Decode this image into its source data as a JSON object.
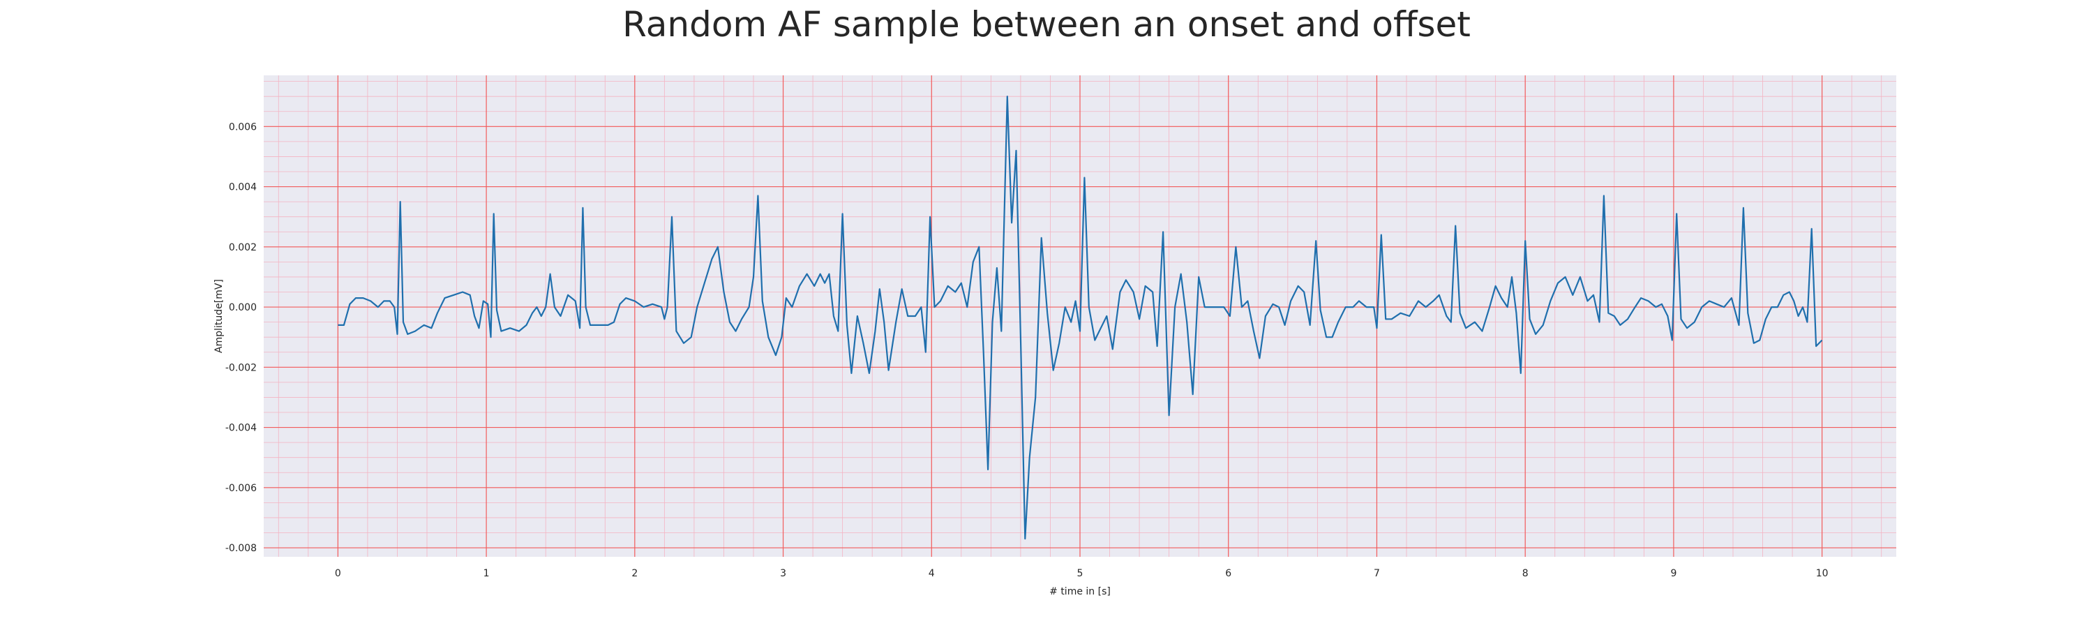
{
  "chart_data": {
    "type": "line",
    "title": "Random AF sample between an onset and offset",
    "xlabel": "# time in [s]",
    "ylabel": "Amplitude[mV]",
    "xlim": [
      -0.5,
      10.5
    ],
    "ylim": [
      -0.0083,
      0.0077
    ],
    "x_ticks": [
      0,
      1,
      2,
      3,
      4,
      5,
      6,
      7,
      8,
      9,
      10
    ],
    "x_tick_labels": [
      "0",
      "1",
      "2",
      "3",
      "4",
      "5",
      "6",
      "7",
      "8",
      "9",
      "10"
    ],
    "y_ticks": [
      -0.008,
      -0.006,
      -0.004,
      -0.002,
      0.0,
      0.002,
      0.004,
      0.006
    ],
    "y_tick_labels": [
      "-0.008",
      "-0.006",
      "-0.004",
      "-0.002",
      "0.000",
      "0.002",
      "0.004",
      "0.006"
    ],
    "grid": true,
    "grid_color": "#f25c5c",
    "minor_grid_color": "#f4b3c2",
    "background_color": "#eaeaf2",
    "line_color": "#1f6fad",
    "series": [
      {
        "points": [
          [
            0.0,
            -0.0006
          ],
          [
            0.04,
            -0.0006
          ],
          [
            0.08,
            0.0001
          ],
          [
            0.12,
            0.0003
          ],
          [
            0.17,
            0.0003
          ],
          [
            0.22,
            0.0002
          ],
          [
            0.27,
            0.0
          ],
          [
            0.31,
            0.0002
          ],
          [
            0.35,
            0.0002
          ],
          [
            0.38,
            0.0
          ],
          [
            0.4,
            -0.0009
          ],
          [
            0.42,
            0.0035
          ],
          [
            0.44,
            -0.0005
          ],
          [
            0.47,
            -0.0009
          ],
          [
            0.52,
            -0.0008
          ],
          [
            0.58,
            -0.0006
          ],
          [
            0.63,
            -0.0007
          ],
          [
            0.67,
            -0.0002
          ],
          [
            0.72,
            0.0003
          ],
          [
            0.78,
            0.0004
          ],
          [
            0.84,
            0.0005
          ],
          [
            0.89,
            0.0004
          ],
          [
            0.92,
            -0.0003
          ],
          [
            0.95,
            -0.0007
          ],
          [
            0.98,
            0.0002
          ],
          [
            1.01,
            0.0001
          ],
          [
            1.03,
            -0.001
          ],
          [
            1.05,
            0.0031
          ],
          [
            1.07,
            -0.0001
          ],
          [
            1.1,
            -0.0008
          ],
          [
            1.16,
            -0.0007
          ],
          [
            1.22,
            -0.0008
          ],
          [
            1.27,
            -0.0006
          ],
          [
            1.31,
            -0.0002
          ],
          [
            1.34,
            0.0
          ],
          [
            1.37,
            -0.0003
          ],
          [
            1.4,
            0.0
          ],
          [
            1.43,
            0.0011
          ],
          [
            1.46,
            0.0
          ],
          [
            1.5,
            -0.0003
          ],
          [
            1.55,
            0.0004
          ],
          [
            1.6,
            0.0002
          ],
          [
            1.63,
            -0.0007
          ],
          [
            1.65,
            0.0033
          ],
          [
            1.67,
            0.0
          ],
          [
            1.7,
            -0.0006
          ],
          [
            1.76,
            -0.0006
          ],
          [
            1.82,
            -0.0006
          ],
          [
            1.86,
            -0.0005
          ],
          [
            1.9,
            0.0001
          ],
          [
            1.94,
            0.0003
          ],
          [
            2.0,
            0.0002
          ],
          [
            2.06,
            0.0
          ],
          [
            2.12,
            0.0001
          ],
          [
            2.18,
            0.0
          ],
          [
            2.2,
            -0.0004
          ],
          [
            2.22,
            0.0
          ],
          [
            2.25,
            0.003
          ],
          [
            2.28,
            -0.0008
          ],
          [
            2.33,
            -0.0012
          ],
          [
            2.38,
            -0.001
          ],
          [
            2.42,
            0.0
          ],
          [
            2.47,
            0.0008
          ],
          [
            2.52,
            0.0016
          ],
          [
            2.56,
            0.002
          ],
          [
            2.6,
            0.0005
          ],
          [
            2.64,
            -0.0005
          ],
          [
            2.68,
            -0.0008
          ],
          [
            2.72,
            -0.0004
          ],
          [
            2.77,
            0.0
          ],
          [
            2.8,
            0.001
          ],
          [
            2.83,
            0.0037
          ],
          [
            2.86,
            0.0002
          ],
          [
            2.9,
            -0.001
          ],
          [
            2.95,
            -0.0016
          ],
          [
            2.99,
            -0.001
          ],
          [
            3.02,
            0.0003
          ],
          [
            3.06,
            0.0
          ],
          [
            3.11,
            0.0007
          ],
          [
            3.16,
            0.0011
          ],
          [
            3.21,
            0.0007
          ],
          [
            3.25,
            0.0011
          ],
          [
            3.28,
            0.0008
          ],
          [
            3.31,
            0.0011
          ],
          [
            3.34,
            -0.0003
          ],
          [
            3.37,
            -0.0008
          ],
          [
            3.4,
            0.0031
          ],
          [
            3.43,
            -0.0006
          ],
          [
            3.46,
            -0.0022
          ],
          [
            3.5,
            -0.0003
          ],
          [
            3.54,
            -0.0012
          ],
          [
            3.58,
            -0.0022
          ],
          [
            3.62,
            -0.0008
          ],
          [
            3.65,
            0.0006
          ],
          [
            3.68,
            -0.0005
          ],
          [
            3.71,
            -0.0021
          ],
          [
            3.76,
            -0.0005
          ],
          [
            3.8,
            0.0006
          ],
          [
            3.84,
            -0.0003
          ],
          [
            3.89,
            -0.0003
          ],
          [
            3.93,
            0.0
          ],
          [
            3.96,
            -0.0015
          ],
          [
            3.99,
            0.003
          ],
          [
            4.02,
            0.0
          ],
          [
            4.06,
            0.0002
          ],
          [
            4.11,
            0.0007
          ],
          [
            4.16,
            0.0005
          ],
          [
            4.2,
            0.0008
          ],
          [
            4.24,
            0.0
          ],
          [
            4.28,
            0.0015
          ],
          [
            4.32,
            0.002
          ],
          [
            4.35,
            -0.0015
          ],
          [
            4.38,
            -0.0054
          ],
          [
            4.41,
            -0.0005
          ],
          [
            4.44,
            0.0013
          ],
          [
            4.47,
            -0.0008
          ],
          [
            4.51,
            0.007
          ],
          [
            4.54,
            0.0028
          ],
          [
            4.57,
            0.0052
          ],
          [
            4.6,
            -0.001
          ],
          [
            4.63,
            -0.0077
          ],
          [
            4.66,
            -0.005
          ],
          [
            4.7,
            -0.003
          ],
          [
            4.74,
            0.0023
          ],
          [
            4.78,
            -0.0002
          ],
          [
            4.82,
            -0.0021
          ],
          [
            4.86,
            -0.0012
          ],
          [
            4.9,
            0.0
          ],
          [
            4.94,
            -0.0005
          ],
          [
            4.97,
            0.0002
          ],
          [
            5.0,
            -0.0008
          ],
          [
            5.03,
            0.0043
          ],
          [
            5.06,
            0.0
          ],
          [
            5.1,
            -0.0011
          ],
          [
            5.14,
            -0.0007
          ],
          [
            5.18,
            -0.0003
          ],
          [
            5.22,
            -0.0014
          ],
          [
            5.27,
            0.0005
          ],
          [
            5.31,
            0.0009
          ],
          [
            5.36,
            0.0005
          ],
          [
            5.4,
            -0.0004
          ],
          [
            5.44,
            0.0007
          ],
          [
            5.49,
            0.0005
          ],
          [
            5.52,
            -0.0013
          ],
          [
            5.56,
            0.0025
          ],
          [
            5.6,
            -0.0036
          ],
          [
            5.64,
            0.0
          ],
          [
            5.68,
            0.0011
          ],
          [
            5.72,
            -0.0005
          ],
          [
            5.76,
            -0.0029
          ],
          [
            5.8,
            0.001
          ],
          [
            5.84,
            0.0
          ],
          [
            5.88,
            0.0
          ],
          [
            5.93,
            0.0
          ],
          [
            5.97,
            0.0
          ],
          [
            6.01,
            -0.0003
          ],
          [
            6.05,
            0.002
          ],
          [
            6.09,
            0.0
          ],
          [
            6.13,
            0.0002
          ],
          [
            6.17,
            -0.0008
          ],
          [
            6.21,
            -0.0017
          ],
          [
            6.25,
            -0.0003
          ],
          [
            6.3,
            0.0001
          ],
          [
            6.34,
            0.0
          ],
          [
            6.38,
            -0.0006
          ],
          [
            6.42,
            0.0002
          ],
          [
            6.47,
            0.0007
          ],
          [
            6.51,
            0.0005
          ],
          [
            6.55,
            -0.0006
          ],
          [
            6.59,
            0.0022
          ],
          [
            6.62,
            -0.0001
          ],
          [
            6.66,
            -0.001
          ],
          [
            6.7,
            -0.001
          ],
          [
            6.74,
            -0.0005
          ],
          [
            6.79,
            0.0
          ],
          [
            6.84,
            0.0
          ],
          [
            6.88,
            0.0002
          ],
          [
            6.93,
            0.0
          ],
          [
            6.98,
            0.0
          ],
          [
            7.0,
            -0.0007
          ],
          [
            7.03,
            0.0024
          ],
          [
            7.06,
            -0.0004
          ],
          [
            7.1,
            -0.0004
          ],
          [
            7.16,
            -0.0002
          ],
          [
            7.22,
            -0.0003
          ],
          [
            7.28,
            0.0002
          ],
          [
            7.33,
            0.0
          ],
          [
            7.38,
            0.0002
          ],
          [
            7.42,
            0.0004
          ],
          [
            7.47,
            -0.0003
          ],
          [
            7.5,
            -0.0005
          ],
          [
            7.53,
            0.0027
          ],
          [
            7.56,
            -0.0002
          ],
          [
            7.6,
            -0.0007
          ],
          [
            7.66,
            -0.0005
          ],
          [
            7.71,
            -0.0008
          ],
          [
            7.76,
            0.0
          ],
          [
            7.8,
            0.0007
          ],
          [
            7.84,
            0.0003
          ],
          [
            7.88,
            0.0
          ],
          [
            7.91,
            0.001
          ],
          [
            7.94,
            -0.0002
          ],
          [
            7.97,
            -0.0022
          ],
          [
            8.0,
            0.0022
          ],
          [
            8.03,
            -0.0004
          ],
          [
            8.07,
            -0.0009
          ],
          [
            8.12,
            -0.0006
          ],
          [
            8.17,
            0.0002
          ],
          [
            8.22,
            0.0008
          ],
          [
            8.27,
            0.001
          ],
          [
            8.32,
            0.0004
          ],
          [
            8.37,
            0.001
          ],
          [
            8.42,
            0.0002
          ],
          [
            8.46,
            0.0004
          ],
          [
            8.5,
            -0.0005
          ],
          [
            8.53,
            0.0037
          ],
          [
            8.56,
            -0.0002
          ],
          [
            8.6,
            -0.0003
          ],
          [
            8.64,
            -0.0006
          ],
          [
            8.69,
            -0.0004
          ],
          [
            8.74,
            0.0
          ],
          [
            8.78,
            0.0003
          ],
          [
            8.83,
            0.0002
          ],
          [
            8.88,
            0.0
          ],
          [
            8.92,
            0.0001
          ],
          [
            8.96,
            -0.0003
          ],
          [
            8.99,
            -0.0011
          ],
          [
            9.02,
            0.0031
          ],
          [
            9.05,
            -0.0004
          ],
          [
            9.09,
            -0.0007
          ],
          [
            9.14,
            -0.0005
          ],
          [
            9.19,
            0.0
          ],
          [
            9.24,
            0.0002
          ],
          [
            9.29,
            0.0001
          ],
          [
            9.34,
            0.0
          ],
          [
            9.39,
            0.0003
          ],
          [
            9.44,
            -0.0006
          ],
          [
            9.47,
            0.0033
          ],
          [
            9.5,
            -0.0002
          ],
          [
            9.54,
            -0.0012
          ],
          [
            9.58,
            -0.0011
          ],
          [
            9.62,
            -0.0004
          ],
          [
            9.66,
            0.0
          ],
          [
            9.7,
            0.0
          ],
          [
            9.74,
            0.0004
          ],
          [
            9.78,
            0.0005
          ],
          [
            9.81,
            0.0002
          ],
          [
            9.84,
            -0.0003
          ],
          [
            9.87,
            0.0
          ],
          [
            9.9,
            -0.0005
          ],
          [
            9.93,
            0.0026
          ],
          [
            9.96,
            -0.0013
          ],
          [
            10.0,
            -0.0011
          ]
        ]
      }
    ]
  }
}
